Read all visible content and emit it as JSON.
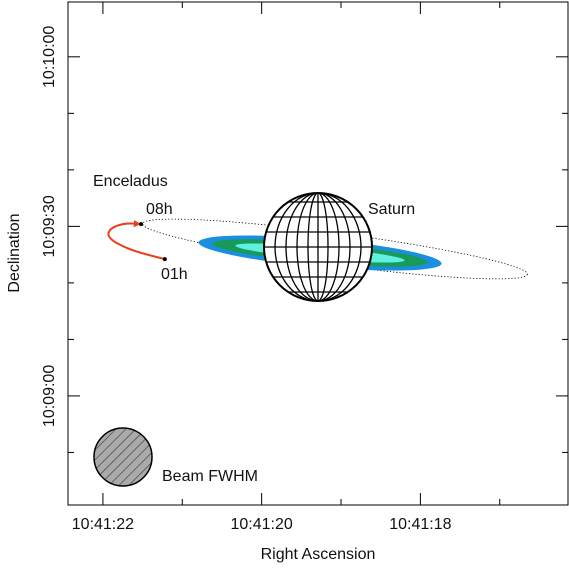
{
  "chart_data": {
    "type": "scatter",
    "xlabel": "Right Ascension",
    "ylabel": "Declination",
    "xlim": [
      22.44,
      16.14
    ],
    "ylim": [
      -19.3,
      69.7
    ],
    "xticks": [
      {
        "value": 22,
        "label": "10:41:22"
      },
      {
        "value": 20,
        "label": "10:41:20"
      },
      {
        "value": 18,
        "label": "10:41:18"
      }
    ],
    "xminorticks": [
      21,
      19,
      17
    ],
    "yticks": [
      {
        "value": 0,
        "label": "10:09:00"
      },
      {
        "value": 30,
        "label": "10:09:30"
      },
      {
        "value": 60,
        "label": "10:10:00"
      }
    ],
    "yminorticks": [
      -10,
      10,
      20,
      40,
      50
    ],
    "series": [
      {
        "name": "Enceladus",
        "color": "#e8401c",
        "x": [
          21.22,
          21.66,
          21.94,
          21.92,
          21.73,
          21.52
        ],
        "y": [
          24.2,
          25.8,
          27.9,
          29.6,
          30.6,
          30.4
        ]
      }
    ],
    "annotations": {
      "start": "01h",
      "end": "08h",
      "planet": "Saturn",
      "beam": "Beam FWHM"
    }
  }
}
